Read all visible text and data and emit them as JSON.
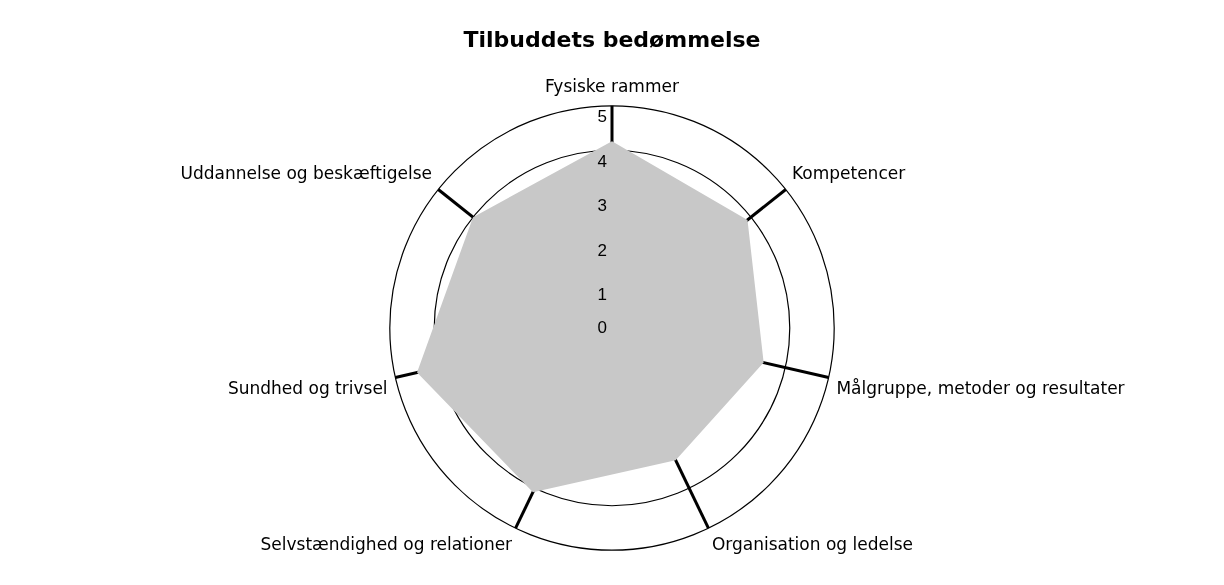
{
  "chart_data": {
    "type": "radar",
    "title": "Tilbuddets bedømmelse",
    "categories": [
      "Fysiske rammer",
      "Kompetencer",
      "Målgruppe, metoder og resultater",
      "Organisation og ledelse",
      "Selvstændighed og relationer",
      "Sundhed og trivsel",
      "Uddannelse og beskæftigelse"
    ],
    "series": [
      {
        "color": "#c8c8c8",
        "values": [
          4.2,
          3.9,
          3.5,
          3.3,
          4.1,
          4.5,
          4.0
        ]
      }
    ],
    "ylim": [
      0,
      5
    ],
    "yticks": [
      0,
      1,
      2,
      3,
      4,
      5
    ],
    "grid": true,
    "legend": false,
    "marker": "none"
  }
}
